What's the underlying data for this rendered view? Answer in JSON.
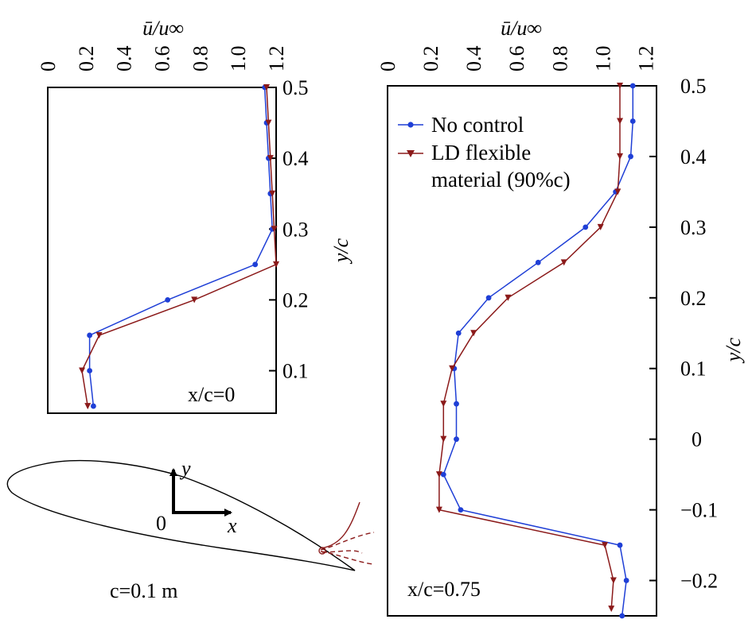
{
  "figure": {
    "airfoil_label": "c=0.1 m",
    "origin_label": "0",
    "x_axis_label": "x",
    "y_axis_label": "y",
    "line_colors": {
      "no_control": "#1f3fd6",
      "ld_flexible": "#8b1a1a"
    }
  },
  "chart_data": [
    {
      "type": "line",
      "panel_label": "x/c=0",
      "xlabel": "ū/u∞",
      "ylabel": "y/c",
      "xlim": [
        0,
        1.2
      ],
      "ylim": [
        0.04,
        0.5
      ],
      "x_ticks": [
        "0",
        "0.2",
        "0.4",
        "0.6",
        "0.8",
        "1.0",
        "1.2"
      ],
      "y_ticks": [
        "0.1",
        "0.2",
        "0.3",
        "0.4",
        "0.5"
      ],
      "grid": false,
      "series": [
        {
          "name": "No control",
          "marker": "circle",
          "points": [
            [
              0.24,
              0.05
            ],
            [
              0.22,
              0.1
            ],
            [
              0.22,
              0.15
            ],
            [
              0.63,
              0.2
            ],
            [
              1.09,
              0.25
            ],
            [
              1.18,
              0.3
            ],
            [
              1.17,
              0.35
            ],
            [
              1.16,
              0.4
            ],
            [
              1.15,
              0.45
            ],
            [
              1.14,
              0.5
            ]
          ]
        },
        {
          "name": "LD flexible material (90%c)",
          "marker": "triangle",
          "points": [
            [
              0.21,
              0.05
            ],
            [
              0.18,
              0.1
            ],
            [
              0.27,
              0.15
            ],
            [
              0.77,
              0.2
            ],
            [
              1.2,
              0.25
            ],
            [
              1.19,
              0.3
            ],
            [
              1.18,
              0.35
            ],
            [
              1.17,
              0.4
            ],
            [
              1.16,
              0.45
            ],
            [
              1.15,
              0.5
            ]
          ]
        }
      ]
    },
    {
      "type": "line",
      "panel_label": "x/c=0.75",
      "xlabel": "ū/u∞",
      "ylabel": "y/c",
      "xlim": [
        0,
        1.25
      ],
      "ylim": [
        -0.25,
        0.5
      ],
      "x_ticks": [
        "0",
        "0.2",
        "0.4",
        "0.6",
        "0.8",
        "1.0",
        "1.2"
      ],
      "y_ticks": [
        "−0.2",
        "−0.1",
        "0",
        "0.1",
        "0.2",
        "0.3",
        "0.4",
        "0.5"
      ],
      "grid": false,
      "legend": [
        "No control",
        "LD flexible",
        "material (90%c)"
      ],
      "legend_placement": "top-left",
      "series": [
        {
          "name": "No control",
          "marker": "circle",
          "points": [
            [
              1.09,
              -0.25
            ],
            [
              1.11,
              -0.2
            ],
            [
              1.08,
              -0.15
            ],
            [
              0.34,
              -0.1
            ],
            [
              0.26,
              -0.05
            ],
            [
              0.32,
              0.0
            ],
            [
              0.32,
              0.05
            ],
            [
              0.31,
              0.1
            ],
            [
              0.33,
              0.15
            ],
            [
              0.47,
              0.2
            ],
            [
              0.7,
              0.25
            ],
            [
              0.92,
              0.3
            ],
            [
              1.06,
              0.35
            ],
            [
              1.13,
              0.4
            ],
            [
              1.14,
              0.45
            ],
            [
              1.14,
              0.5
            ]
          ]
        },
        {
          "name": "LD flexible material (90%c)",
          "marker": "triangle",
          "points": [
            [
              1.04,
              -0.24
            ],
            [
              1.05,
              -0.2
            ],
            [
              1.01,
              -0.15
            ],
            [
              0.24,
              -0.1
            ],
            [
              0.24,
              -0.05
            ],
            [
              0.26,
              0.0
            ],
            [
              0.26,
              0.05
            ],
            [
              0.3,
              0.1
            ],
            [
              0.4,
              0.15
            ],
            [
              0.56,
              0.2
            ],
            [
              0.82,
              0.25
            ],
            [
              0.99,
              0.3
            ],
            [
              1.07,
              0.35
            ],
            [
              1.08,
              0.4
            ],
            [
              1.08,
              0.45
            ],
            [
              1.08,
              0.5
            ]
          ]
        }
      ]
    }
  ]
}
